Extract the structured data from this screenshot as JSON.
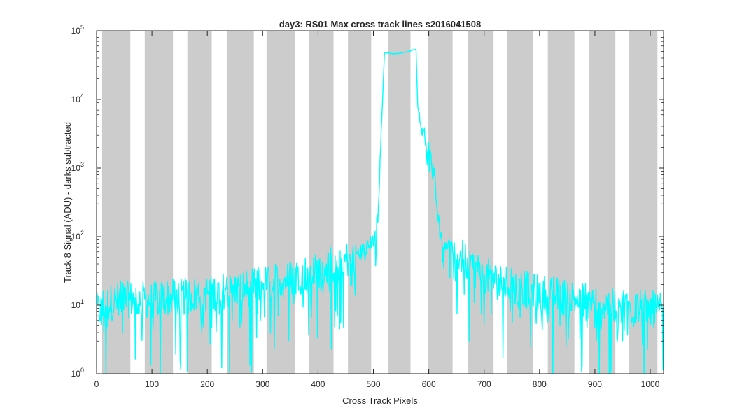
{
  "chart_data": {
    "type": "line",
    "title": "day3: RS01  Max cross track lines  s2016041508",
    "xlabel": "Cross Track Pixels",
    "ylabel": "Track 8 Signal (ADU) - darks subtracted",
    "xlim": [
      0,
      1024
    ],
    "ylim": [
      1,
      100000
    ],
    "yscale": "log",
    "grid": false,
    "x_ticks": [
      "0",
      "100",
      "200",
      "300",
      "400",
      "500",
      "600",
      "700",
      "800",
      "900",
      "1000"
    ],
    "y_ticks": [
      {
        "base": "10",
        "exp": "0",
        "value": 1
      },
      {
        "base": "10",
        "exp": "1",
        "value": 10
      },
      {
        "base": "10",
        "exp": "2",
        "value": 100
      },
      {
        "base": "10",
        "exp": "3",
        "value": 1000
      },
      {
        "base": "10",
        "exp": "4",
        "value": 10000
      },
      {
        "base": "10",
        "exp": "5",
        "value": 100000
      }
    ],
    "shaded_bands": [
      {
        "x0": 10,
        "x1": 61
      },
      {
        "x0": 87,
        "x1": 138
      },
      {
        "x0": 164,
        "x1": 208
      },
      {
        "x0": 235,
        "x1": 284
      },
      {
        "x0": 307,
        "x1": 358
      },
      {
        "x0": 383,
        "x1": 428
      },
      {
        "x0": 454,
        "x1": 496
      },
      {
        "x0": 526,
        "x1": 567
      },
      {
        "x0": 598,
        "x1": 643
      },
      {
        "x0": 670,
        "x1": 717
      },
      {
        "x0": 742,
        "x1": 788
      },
      {
        "x0": 815,
        "x1": 863
      },
      {
        "x0": 889,
        "x1": 937
      },
      {
        "x0": 962,
        "x1": 1013
      }
    ],
    "band_color": "#cccccc",
    "series": [
      {
        "color": "#00ffff",
        "x": [
          0,
          25,
          50,
          75,
          100,
          125,
          150,
          175,
          200,
          225,
          250,
          275,
          300,
          325,
          350,
          375,
          400,
          425,
          450,
          470,
          490,
          500,
          505,
          510,
          515,
          520,
          540,
          560,
          572,
          577,
          580,
          585,
          600,
          610,
          615,
          620,
          625,
          640,
          660,
          680,
          700,
          725,
          750,
          775,
          800,
          825,
          850,
          875,
          900,
          925,
          950,
          975,
          1000,
          1015,
          1024
        ],
        "y": [
          8,
          11,
          12,
          12,
          12,
          13,
          13,
          14,
          15,
          16,
          17,
          18,
          20,
          22,
          25,
          28,
          32,
          38,
          45,
          55,
          70,
          90,
          130,
          400,
          5000,
          48000,
          46000,
          49000,
          53000,
          53000,
          8000,
          4500,
          2000,
          800,
          300,
          120,
          90,
          70,
          50,
          35,
          28,
          22,
          19,
          17,
          15,
          14,
          13,
          12,
          11,
          10,
          10,
          9,
          9,
          8,
          8
        ],
        "noise_note": "noisy trace around baseline with frequent drops toward 1"
      }
    ]
  }
}
